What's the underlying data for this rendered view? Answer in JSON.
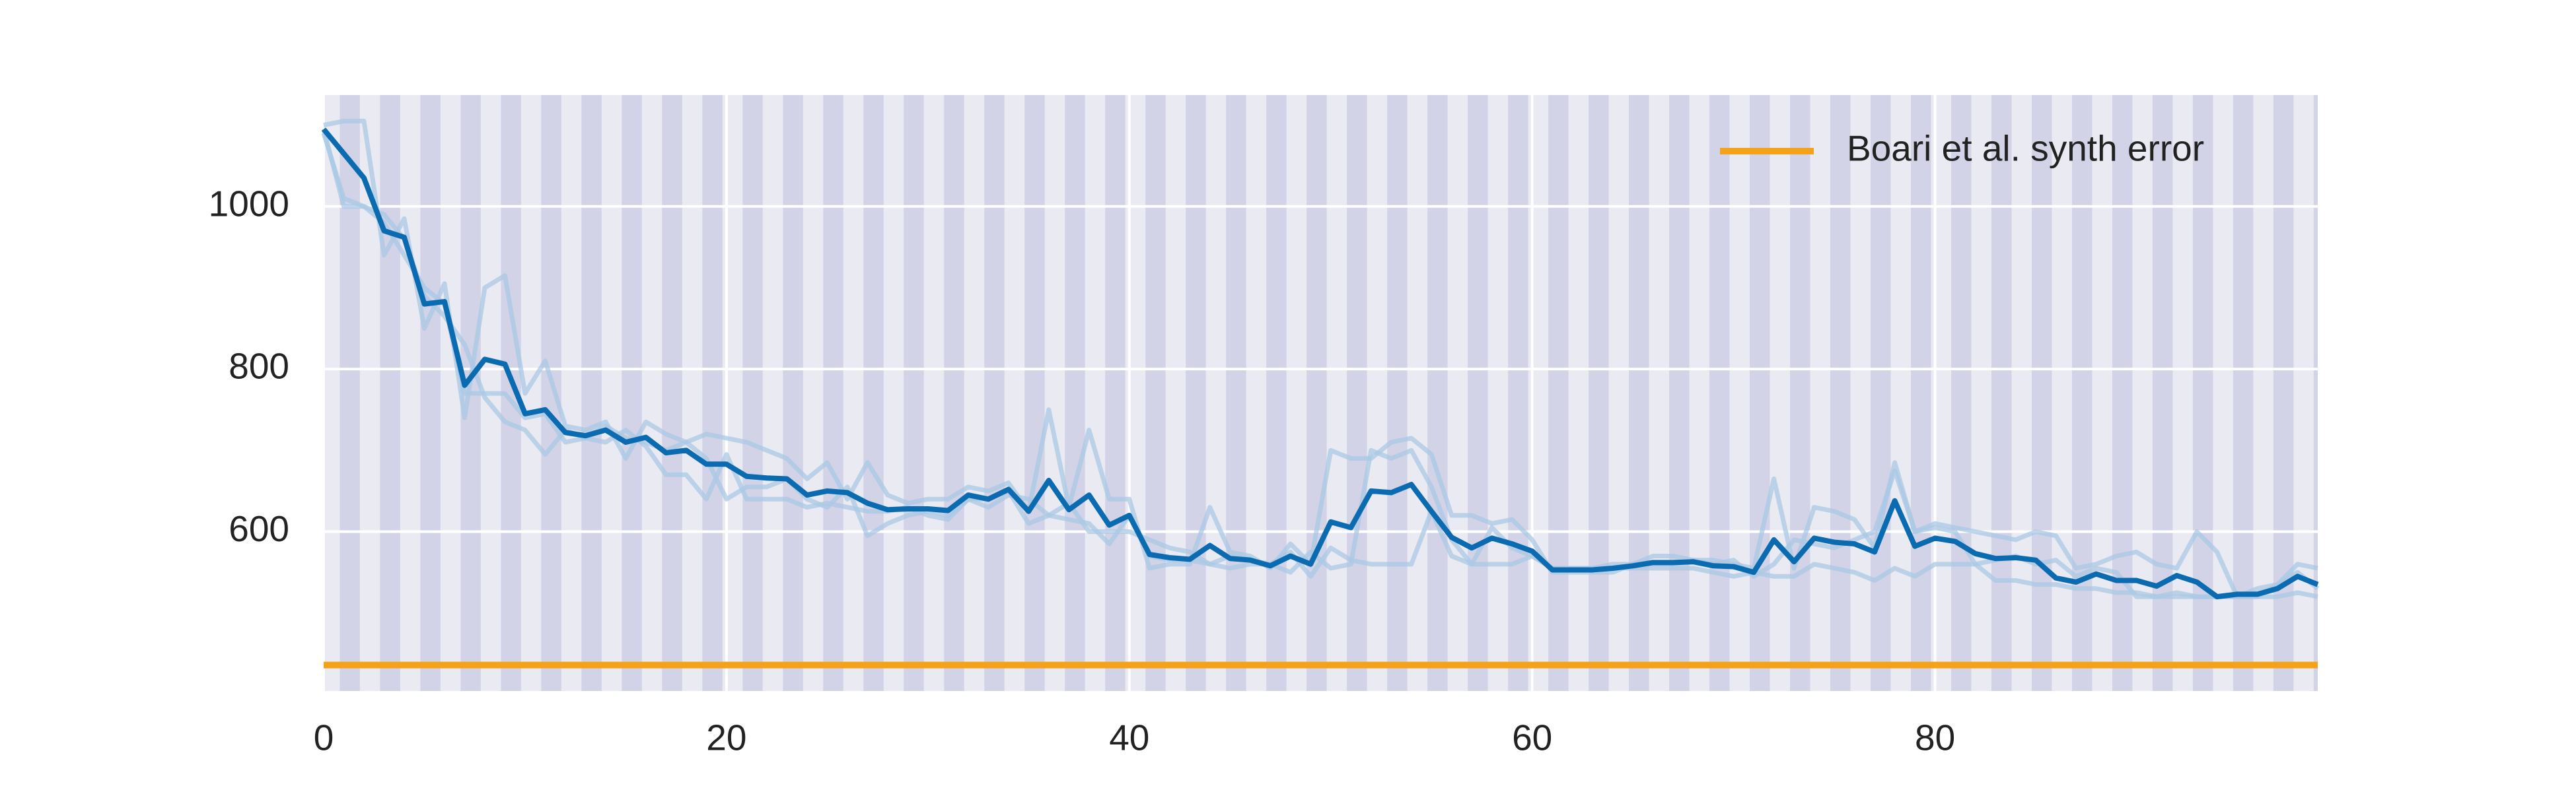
{
  "chart_data": {
    "type": "line",
    "xlim": [
      0,
      99
    ],
    "xticks": [
      0,
      20,
      40,
      60,
      80
    ],
    "ylim": [
      404,
      1137
    ],
    "yticks": [
      600,
      800,
      1000
    ],
    "grid": true,
    "legend": "upper right",
    "x": [
      0,
      1,
      2,
      3,
      4,
      5,
      6,
      7,
      8,
      9,
      10,
      11,
      12,
      13,
      14,
      15,
      16,
      17,
      18,
      19,
      20,
      21,
      22,
      23,
      24,
      25,
      26,
      27,
      28,
      29,
      30,
      31,
      32,
      33,
      34,
      35,
      36,
      37,
      38,
      39,
      40,
      41,
      42,
      43,
      44,
      45,
      46,
      47,
      48,
      49,
      50,
      51,
      52,
      53,
      54,
      55,
      56,
      57,
      58,
      59,
      60,
      61,
      62,
      63,
      64,
      65,
      66,
      67,
      68,
      69,
      70,
      71,
      72,
      73,
      74,
      75,
      76,
      77,
      78,
      79,
      80,
      81,
      82,
      83,
      84,
      85,
      86,
      87,
      88,
      89,
      90,
      91,
      92,
      93,
      94,
      95,
      96,
      97,
      98,
      99
    ],
    "series": [
      {
        "color": "#a9c8e4",
        "values": [
          1100,
          1105,
          1105,
          940,
          985,
          850,
          905,
          740,
          900,
          915,
          770,
          810,
          730,
          725,
          735,
          690,
          735,
          720,
          710,
          720,
          715,
          710,
          700,
          690,
          665,
          685,
          640,
          685,
          645,
          635,
          640,
          640,
          655,
          650,
          660,
          625,
          750,
          630,
          725,
          640,
          640,
          555,
          560,
          560,
          630,
          575,
          570,
          555,
          585,
          560,
          700,
          690,
          690,
          710,
          715,
          695,
          620,
          620,
          610,
          615,
          590,
          550,
          550,
          550,
          550,
          560,
          570,
          570,
          565,
          565,
          560,
          555,
          665,
          555,
          630,
          625,
          615,
          580,
          685,
          600,
          610,
          605,
          600,
          595,
          590,
          600,
          595,
          555,
          560,
          570,
          575,
          560,
          555,
          600,
          575,
          520,
          530,
          535,
          560,
          555
        ]
      },
      {
        "color": "#a9c8e4",
        "values": [
          1095,
          1000,
          1000,
          980,
          940,
          900,
          880,
          770,
          770,
          770,
          740,
          745,
          710,
          715,
          710,
          725,
          705,
          670,
          670,
          640,
          695,
          640,
          640,
          640,
          630,
          635,
          630,
          625,
          625,
          630,
          620,
          615,
          640,
          630,
          645,
          640,
          620,
          615,
          610,
          585,
          620,
          570,
          565,
          565,
          560,
          555,
          560,
          560,
          550,
          575,
          555,
          560,
          700,
          690,
          700,
          655,
          590,
          560,
          560,
          560,
          570,
          555,
          555,
          555,
          555,
          555,
          555,
          555,
          555,
          550,
          545,
          550,
          545,
          545,
          560,
          555,
          550,
          540,
          555,
          545,
          560,
          560,
          560,
          540,
          540,
          535,
          535,
          530,
          530,
          525,
          525,
          520,
          520,
          520,
          520,
          520,
          520,
          520,
          525,
          520
        ]
      },
      {
        "color": "#a9c8e4",
        "values": [
          1090,
          1010,
          1000,
          990,
          960,
          890,
          865,
          830,
          765,
          735,
          725,
          695,
          725,
          715,
          730,
          715,
          710,
          700,
          710,
          690,
          640,
          655,
          655,
          665,
          640,
          630,
          655,
          595,
          610,
          620,
          625,
          620,
          640,
          640,
          650,
          610,
          620,
          635,
          600,
          600,
          600,
          590,
          580,
          575,
          560,
          570,
          565,
          560,
          575,
          545,
          580,
          565,
          560,
          560,
          560,
          625,
          570,
          560,
          605,
          580,
          570,
          555,
          555,
          555,
          560,
          560,
          560,
          560,
          565,
          560,
          565,
          545,
          560,
          590,
          585,
          580,
          590,
          600,
          675,
          600,
          605,
          600,
          560,
          565,
          570,
          560,
          565,
          545,
          555,
          550,
          520,
          520,
          525,
          520,
          520,
          520,
          520,
          535,
          550,
          530
        ]
      },
      {
        "color": "#0b6bb1",
        "values": [
          1095,
          1065,
          1035,
          970,
          962,
          880,
          883,
          780,
          812,
          806,
          745,
          750,
          722,
          718,
          725,
          710,
          716,
          697,
          700,
          683,
          683,
          668,
          666,
          665,
          645,
          650,
          648,
          635,
          627,
          628,
          628,
          626,
          645,
          640,
          652,
          625,
          663,
          627,
          645,
          608,
          620,
          572,
          568,
          566,
          583,
          567,
          565,
          558,
          570,
          560,
          612,
          605,
          650,
          648,
          658,
          625,
          593,
          580,
          592,
          585,
          576,
          553,
          553,
          553,
          555,
          558,
          562,
          562,
          563,
          558,
          557,
          550,
          590,
          563,
          592,
          587,
          585,
          575,
          638,
          582,
          592,
          588,
          573,
          567,
          568,
          565,
          543,
          538,
          548,
          540,
          540,
          533,
          546,
          538,
          520,
          523,
          523,
          530,
          545,
          535
        ]
      }
    ],
    "hline": {
      "name": "Boari et al. synth error",
      "value": 436,
      "color": "#f5a21b"
    }
  }
}
